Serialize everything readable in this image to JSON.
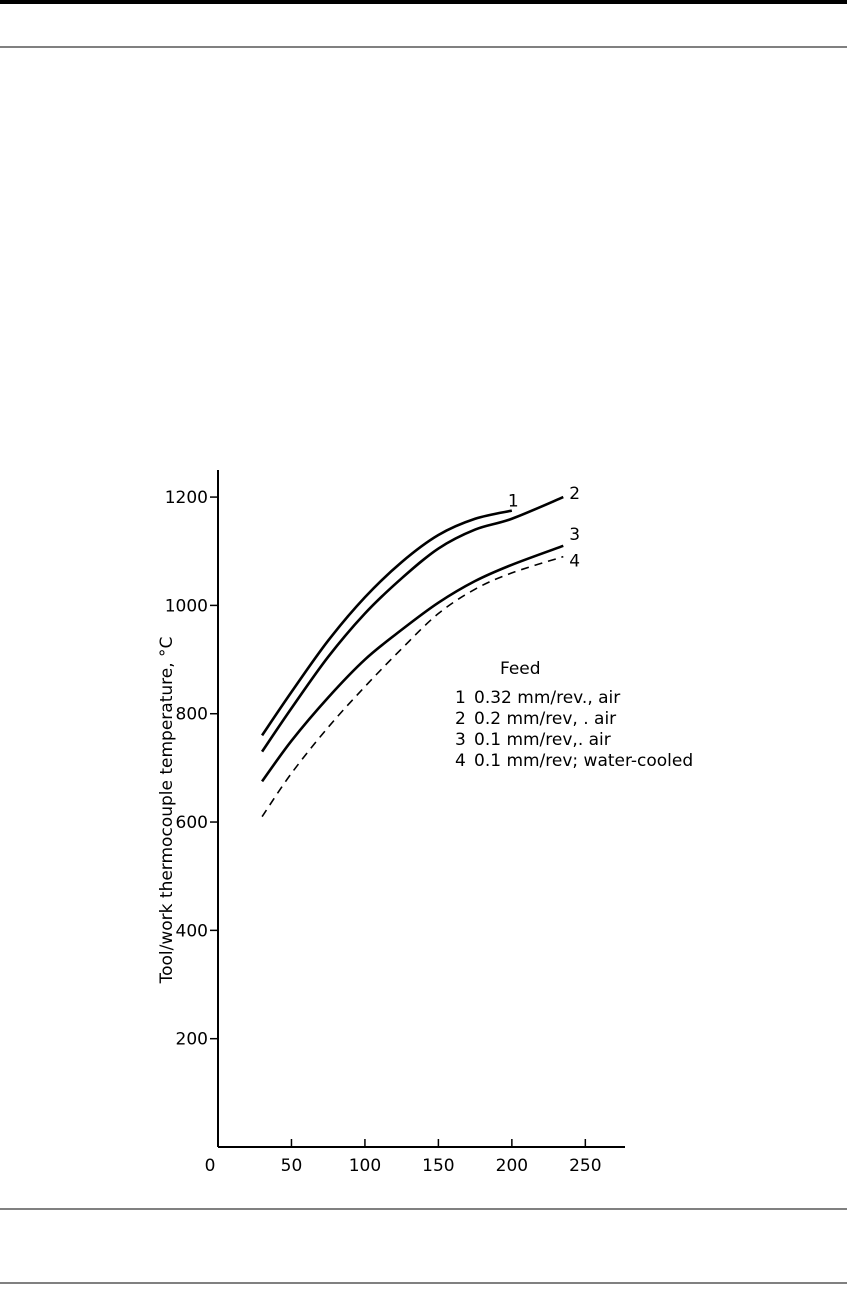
{
  "chart_data": {
    "type": "line",
    "y_label": "Tool/work thermocouple temperature, °C",
    "legend_title": "Feed",
    "xlim": [
      0,
      277
    ],
    "ylim": [
      0,
      1250
    ],
    "xticks": [
      0,
      50,
      100,
      150,
      200,
      250
    ],
    "yticks": [
      200,
      400,
      600,
      800,
      1000,
      1200
    ],
    "series": [
      {
        "name": "1",
        "description": "0.32 mm/rev., air",
        "color": "#000000",
        "dashed": false,
        "x": [
          30,
          50,
          75,
          100,
          125,
          150,
          175,
          200
        ],
        "values": [
          760,
          840,
          935,
          1015,
          1080,
          1130,
          1160,
          1175
        ]
      },
      {
        "name": "2",
        "description": "0.2 mm/rev, . air",
        "color": "#000000",
        "dashed": false,
        "x": [
          30,
          50,
          75,
          100,
          125,
          150,
          175,
          200,
          235
        ],
        "values": [
          730,
          810,
          905,
          985,
          1050,
          1105,
          1140,
          1160,
          1200
        ]
      },
      {
        "name": "3",
        "description": "0.1 mm/rev,. air",
        "color": "#000000",
        "dashed": false,
        "x": [
          30,
          50,
          75,
          100,
          125,
          150,
          175,
          200,
          235
        ],
        "values": [
          675,
          750,
          830,
          900,
          955,
          1005,
          1045,
          1075,
          1110
        ]
      },
      {
        "name": "4",
        "description": "0.1 mm/rev; water-cooled",
        "color": "#000000",
        "dashed": true,
        "x": [
          30,
          50,
          75,
          100,
          125,
          150,
          175,
          200,
          235
        ],
        "values": [
          610,
          690,
          775,
          850,
          920,
          985,
          1030,
          1060,
          1090
        ]
      }
    ]
  }
}
